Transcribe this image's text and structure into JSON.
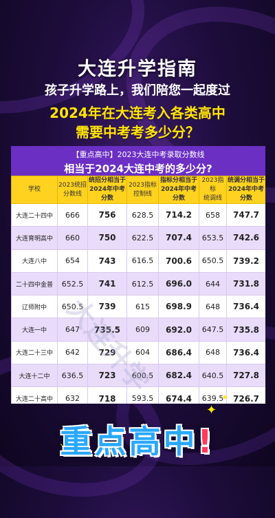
{
  "header": {
    "title": "大连升学指南",
    "subtitle": "孩子升学路上，我们陪您一起度过",
    "line1": "2024年在大连考入各类高中",
    "line2": "需要中考考多少分？"
  },
  "card": {
    "tag": "【重点高中】2023大连中考录取分数线",
    "title": "相当于2024大连中考的多少分?"
  },
  "table": {
    "headers": [
      "学校",
      "2023统招\n分数线",
      "统招分相当于\n2024年中考分数",
      "2023指标\n控制线",
      "指标分相当于\n2024年中考分数",
      "2023指标\n统调线",
      "统调分相当于\n2024年中考分数"
    ],
    "rows": [
      [
        "大连二十四中",
        "666",
        "756",
        "628.5",
        "714.2",
        "658",
        "747.7"
      ],
      [
        "大连育明高中",
        "660",
        "750",
        "622.5",
        "707.4",
        "653.5",
        "742.6"
      ],
      [
        "大连八中",
        "654",
        "743",
        "616.5",
        "700.6",
        "650.5",
        "739.2"
      ],
      [
        "二十四中金普",
        "652.5",
        "741",
        "612.5",
        "696.0",
        "644",
        "731.8"
      ],
      [
        "辽师附中",
        "650.5",
        "739",
        "615",
        "698.9",
        "648",
        "736.4"
      ],
      [
        "大连一中",
        "647",
        "735.5",
        "609",
        "692.0",
        "647.5",
        "735.8"
      ],
      [
        "大连二十三中",
        "642",
        "729",
        "604",
        "686.4",
        "648",
        "736.4"
      ],
      [
        "大连十二中",
        "636.5",
        "723",
        "600.5",
        "682.4",
        "640.5",
        "727.8"
      ],
      [
        "大连二十高中",
        "632",
        "718",
        "593.5",
        "674.4",
        "639.5",
        "726.7"
      ]
    ]
  },
  "watermark": "大连升学",
  "bottom": {
    "part1": "重点高中",
    "part2": "!"
  },
  "colors": {
    "accent": "#6b2fc4",
    "header_yellow": "#ffd21f",
    "row_alt": "#e9dcfa"
  }
}
